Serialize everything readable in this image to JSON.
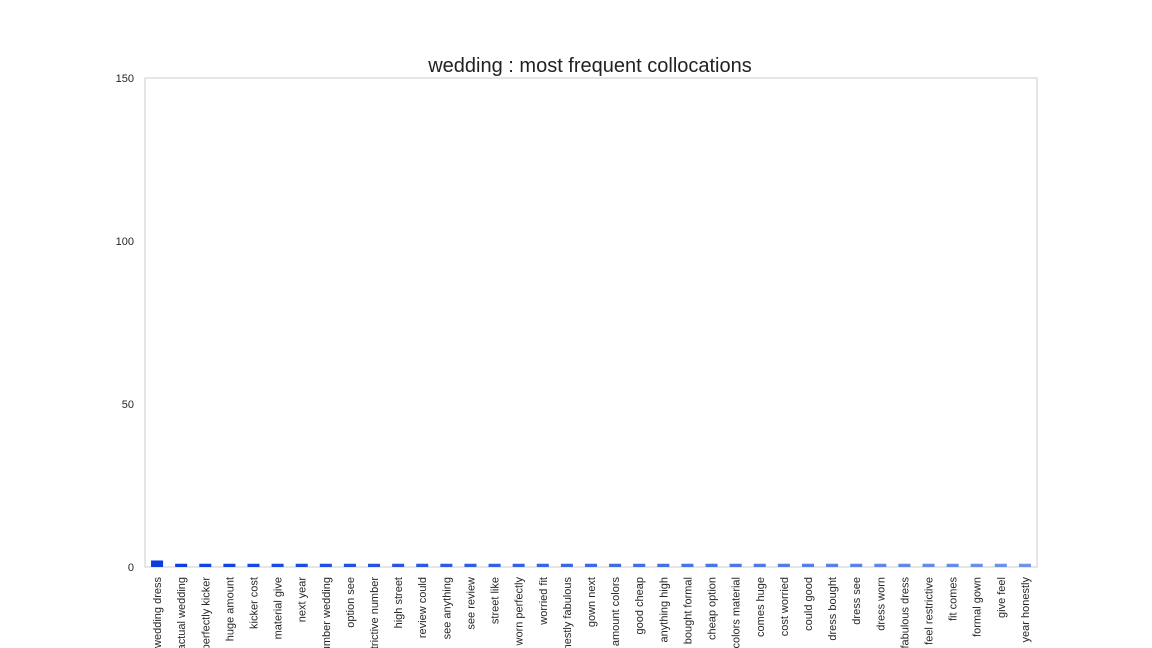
{
  "chart_data": {
    "type": "bar",
    "title": "wedding : most frequent collocations",
    "xlabel": "",
    "ylabel": "",
    "ylim": [
      0,
      150
    ],
    "yticks": [
      0,
      50,
      100,
      150
    ],
    "grid": false,
    "legend": "none",
    "categories": [
      "wedding dress",
      "actual wedding",
      "perfectly kicker",
      "huge amount",
      "kicker cost",
      "material give",
      "next year",
      "number wedding",
      "option see",
      "restrictive number",
      "high street",
      "review could",
      "see anything",
      "see review",
      "street like",
      "worn perfectly",
      "worried fit",
      "honestly fabulous",
      "gown next",
      "amount colors",
      "good cheap",
      "anything high",
      "bought formal",
      "cheap option",
      "colors material",
      "comes huge",
      "cost worried",
      "could good",
      "dress bought",
      "dress see",
      "dress worn",
      "fabulous dress",
      "feel restrictive",
      "fit comes",
      "formal gown",
      "give feel",
      "year honestly"
    ],
    "values": [
      2,
      1,
      1,
      1,
      1,
      1,
      1,
      1,
      1,
      1,
      1,
      1,
      1,
      1,
      1,
      1,
      1,
      1,
      1,
      1,
      1,
      1,
      1,
      1,
      1,
      1,
      1,
      1,
      1,
      1,
      1,
      1,
      1,
      1,
      1,
      1,
      1
    ],
    "colors": {
      "start": "#0b3ee0",
      "end": "#6f93e8",
      "frame": "#cccccc"
    }
  }
}
